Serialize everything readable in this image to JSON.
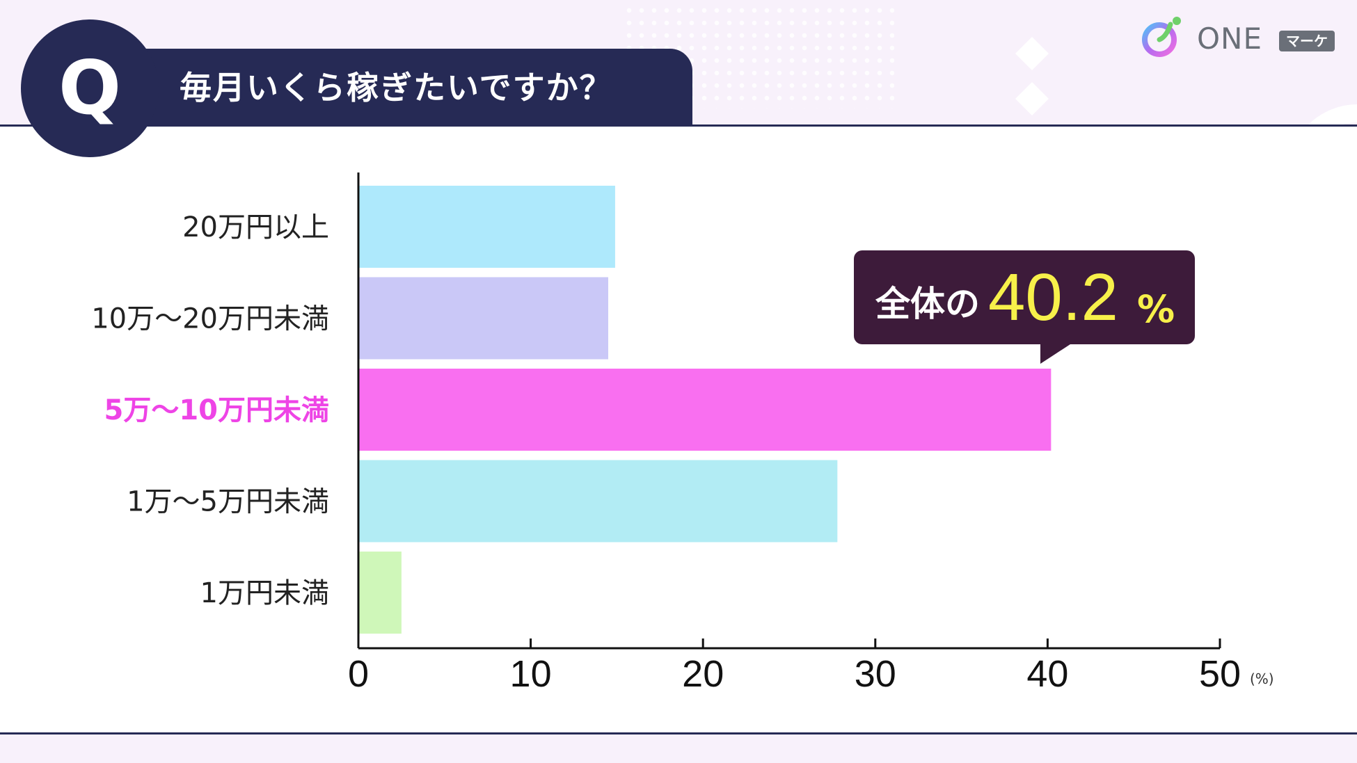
{
  "question": {
    "badge": "Q",
    "text": "毎月いくら稼ぎたいですか？"
  },
  "logo": {
    "name": "ONE",
    "badge": "マーケ"
  },
  "colors": {
    "navy": "#262a55",
    "highlight": "#ee44e6",
    "callout_bg": "#3d1b3a",
    "callout_accent": "#f7f04a"
  },
  "callout": {
    "prefix": "全体の",
    "value": "40.2",
    "unit": "%"
  },
  "chart_data": {
    "type": "bar",
    "orientation": "horizontal",
    "categories": [
      "20万円以上",
      "10万〜20万円未満",
      "5万〜10万円未満",
      "1万〜5万円未満",
      "1万円未満"
    ],
    "values": [
      14.9,
      14.5,
      40.2,
      27.8,
      2.5
    ],
    "highlight_index": 2,
    "bar_colors": [
      "#aee9fc",
      "#cac8f7",
      "#f96ff0",
      "#b2ecf4",
      "#cff7b9"
    ],
    "xlim": [
      0,
      50
    ],
    "xticks": [
      "0",
      "10",
      "20",
      "30",
      "40",
      "50"
    ],
    "x_unit": "(%)",
    "grid": false
  }
}
